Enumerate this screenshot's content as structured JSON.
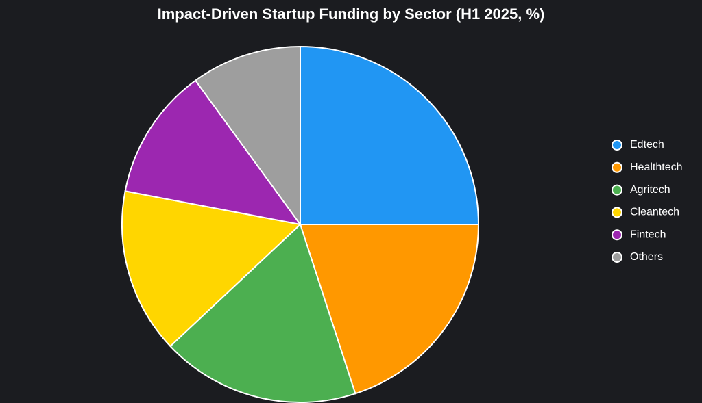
{
  "chart_data": {
    "type": "pie",
    "title": "Impact-Driven Startup Funding by Sector (H1 2025, %)",
    "categories": [
      "Edtech",
      "Healthtech",
      "Agritech",
      "Cleantech",
      "Fintech",
      "Others"
    ],
    "values": [
      25,
      20,
      18,
      15,
      12,
      10
    ],
    "colors": [
      "#2196f3",
      "#ff9800",
      "#4caf50",
      "#ffd600",
      "#9c27b0",
      "#9e9e9e"
    ],
    "legend": "right"
  }
}
